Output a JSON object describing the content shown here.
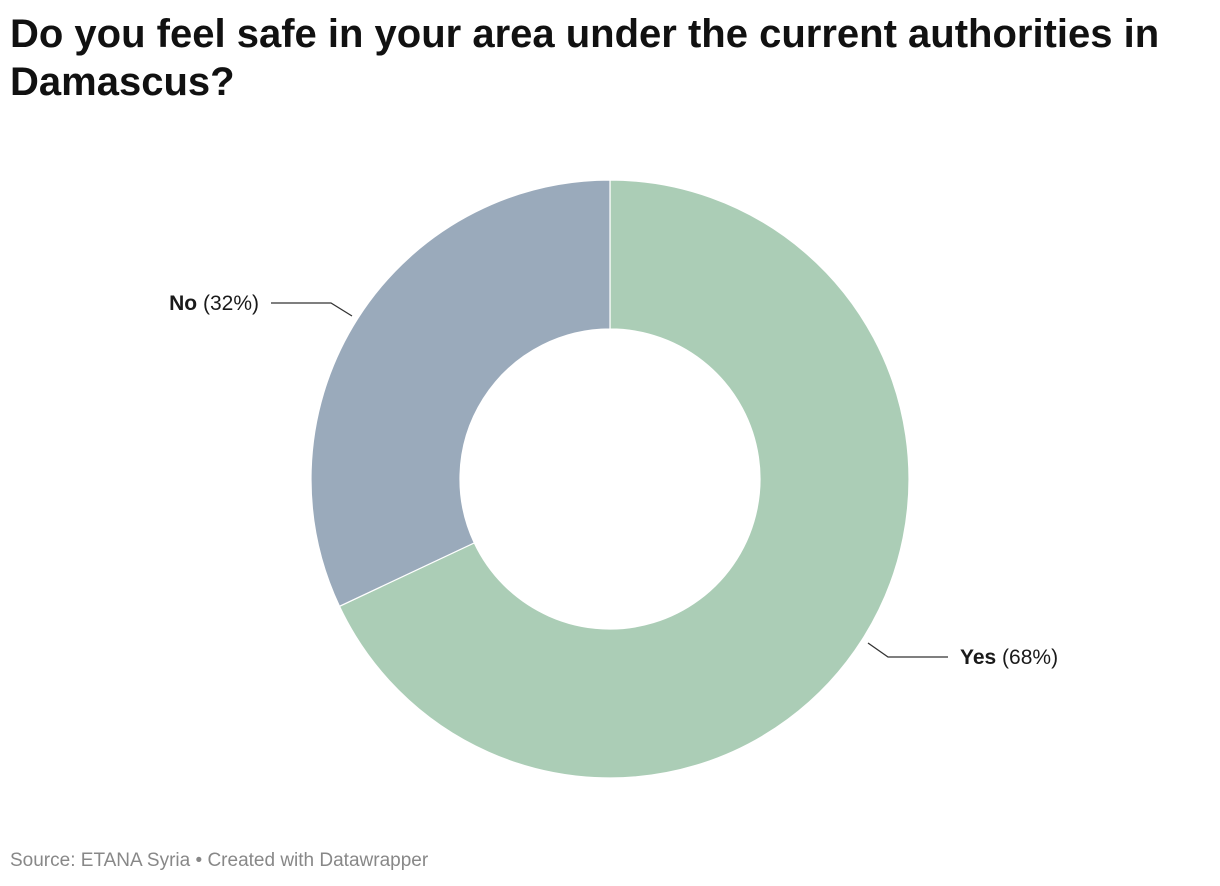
{
  "title": "Do you feel safe in your area under the current authorities in Damascus?",
  "footer": {
    "source_label": "Source:",
    "source": "ETANA Syria",
    "separator": "•",
    "credit": "Created with Datawrapper"
  },
  "colors": {
    "yes": "#abcdb6",
    "no": "#9aaabb",
    "leader": "#333333"
  },
  "chart_data": {
    "type": "pie",
    "donut": true,
    "title": "Do you feel safe in your area under the current authorities in Damascus?",
    "slices": [
      {
        "label": "Yes",
        "value": 68,
        "pct_text": "(68%)",
        "color": "#abcdb6"
      },
      {
        "label": "No",
        "value": 32,
        "pct_text": "(32%)",
        "color": "#9aaabb"
      }
    ]
  }
}
